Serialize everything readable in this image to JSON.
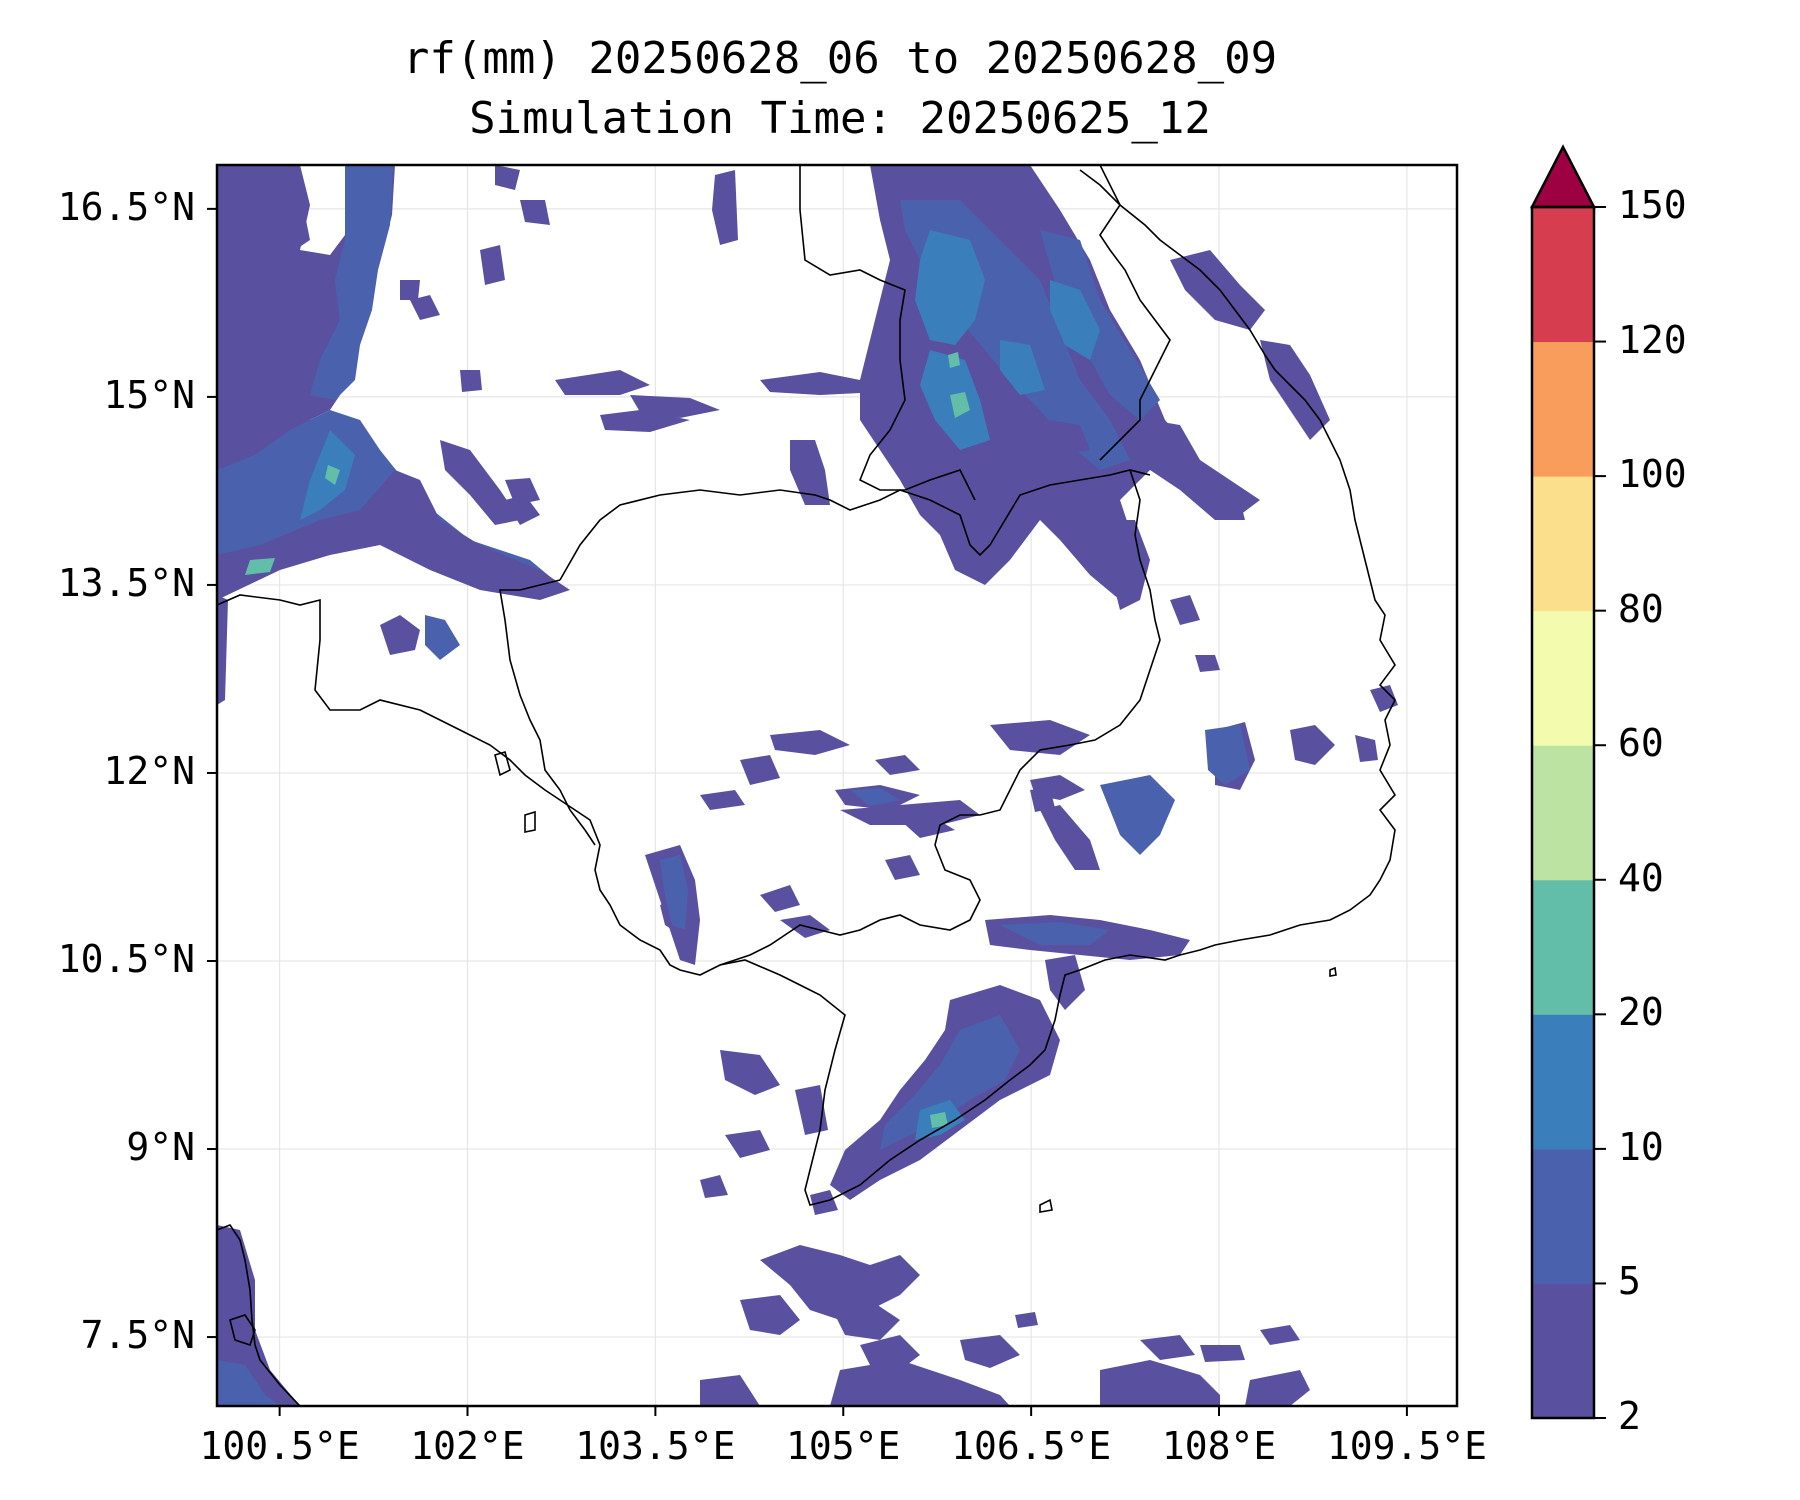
{
  "title": {
    "line1": "rf(mm) 20250628_06 to 20250628_09",
    "line2": "Simulation Time: 20250625_12"
  },
  "map": {
    "lon_range": [
      100.0,
      109.9
    ],
    "lat_range": [
      6.95,
      16.85
    ],
    "x_ticks": [
      {
        "value": 100.5,
        "label": "100.5°E"
      },
      {
        "value": 102.0,
        "label": "102°E"
      },
      {
        "value": 103.5,
        "label": "103.5°E"
      },
      {
        "value": 105.0,
        "label": "105°E"
      },
      {
        "value": 106.5,
        "label": "106.5°E"
      },
      {
        "value": 108.0,
        "label": "108°E"
      },
      {
        "value": 109.5,
        "label": "109.5°E"
      }
    ],
    "y_ticks": [
      {
        "value": 16.5,
        "label": "16.5°N"
      },
      {
        "value": 15.0,
        "label": "15°N"
      },
      {
        "value": 13.5,
        "label": "13.5°N"
      },
      {
        "value": 12.0,
        "label": "12°N"
      },
      {
        "value": 10.5,
        "label": "10.5°N"
      },
      {
        "value": 9.0,
        "label": "9°N"
      },
      {
        "value": 7.5,
        "label": "7.5°N"
      }
    ],
    "gridlines": true
  },
  "colorbar": {
    "levels": [
      "2",
      "5",
      "10",
      "20",
      "40",
      "60",
      "80",
      "100",
      "120",
      "150"
    ],
    "colors": [
      "#5a50a0",
      "#4a62ae",
      "#3a7fbb",
      "#62bda9",
      "#bde3a2",
      "#f3fbae",
      "#fbdf8c",
      "#f99d5c",
      "#d63e4f"
    ],
    "extend_max_color": "#9e0142"
  }
}
